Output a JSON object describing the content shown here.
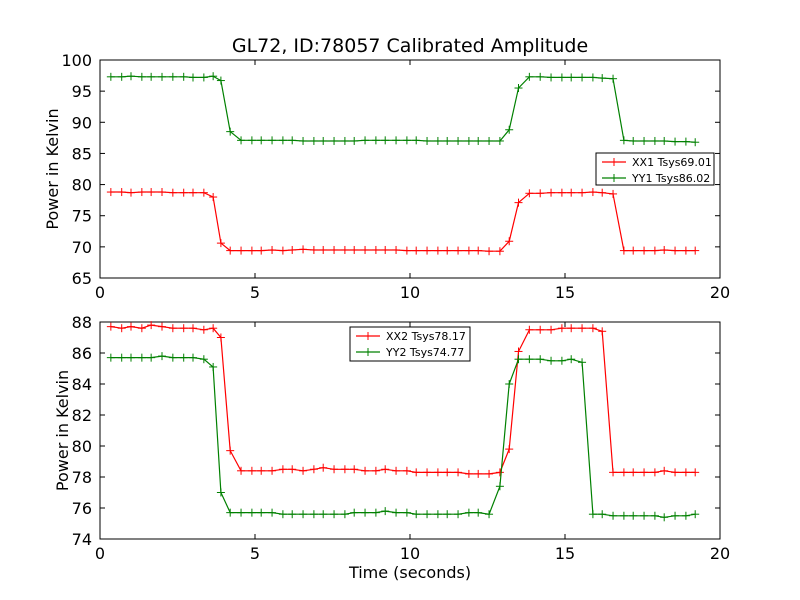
{
  "figure": {
    "title": "GL72, ID:78057 Calibrated Amplitude",
    "xlabel": "Time (seconds)"
  },
  "chart_data": [
    {
      "type": "line",
      "ylabel": "Power in Kelvin",
      "xlim": [
        0,
        20
      ],
      "ylim": [
        65,
        100
      ],
      "x_ticks": [
        0,
        5,
        10,
        15,
        20
      ],
      "y_ticks": [
        65,
        70,
        75,
        80,
        85,
        90,
        95,
        100
      ],
      "legend_position": "center-right",
      "grid": false,
      "x": [
        0.35,
        0.7,
        1.0,
        1.35,
        1.65,
        2.0,
        2.35,
        2.7,
        3.0,
        3.35,
        3.65,
        3.9,
        4.2,
        4.55,
        4.9,
        5.2,
        5.55,
        5.9,
        6.2,
        6.55,
        6.9,
        7.2,
        7.55,
        7.9,
        8.2,
        8.55,
        8.9,
        9.2,
        9.55,
        9.9,
        10.2,
        10.55,
        10.9,
        11.2,
        11.55,
        11.9,
        12.2,
        12.55,
        12.9,
        13.2,
        13.5,
        13.85,
        14.2,
        14.55,
        14.9,
        15.2,
        15.55,
        15.9,
        16.2,
        16.55,
        16.9,
        17.2,
        17.55,
        17.9,
        18.2,
        18.55,
        18.9,
        19.2
      ],
      "series": [
        {
          "name": "XX1 Tsys69.01",
          "color": "#ff0000",
          "values": [
            78.8,
            78.8,
            78.7,
            78.8,
            78.8,
            78.8,
            78.7,
            78.7,
            78.7,
            78.7,
            78.0,
            70.6,
            69.4,
            69.4,
            69.4,
            69.4,
            69.5,
            69.4,
            69.5,
            69.6,
            69.5,
            69.5,
            69.5,
            69.5,
            69.5,
            69.5,
            69.5,
            69.5,
            69.5,
            69.4,
            69.4,
            69.4,
            69.4,
            69.4,
            69.4,
            69.4,
            69.4,
            69.3,
            69.3,
            70.9,
            77.1,
            78.6,
            78.6,
            78.7,
            78.7,
            78.7,
            78.7,
            78.8,
            78.7,
            78.5,
            69.4,
            69.4,
            69.4,
            69.4,
            69.5,
            69.4,
            69.4,
            69.4
          ]
        },
        {
          "name": "YY1 Tsys86.02",
          "color": "#008000",
          "values": [
            97.3,
            97.3,
            97.4,
            97.3,
            97.3,
            97.3,
            97.3,
            97.3,
            97.2,
            97.2,
            97.4,
            96.7,
            88.5,
            87.1,
            87.1,
            87.1,
            87.1,
            87.1,
            87.1,
            87.0,
            87.0,
            87.0,
            87.0,
            87.0,
            87.0,
            87.1,
            87.1,
            87.1,
            87.1,
            87.1,
            87.1,
            87.0,
            87.0,
            87.0,
            87.0,
            87.0,
            87.0,
            87.0,
            87.0,
            88.8,
            95.5,
            97.3,
            97.3,
            97.2,
            97.2,
            97.2,
            97.2,
            97.2,
            97.1,
            97.0,
            87.1,
            87.0,
            87.0,
            87.0,
            87.0,
            86.9,
            86.9,
            86.8
          ]
        }
      ]
    },
    {
      "type": "line",
      "ylabel": "Power in Kelvin",
      "xlabel": "Time (seconds)",
      "xlim": [
        0,
        20
      ],
      "ylim": [
        74,
        88
      ],
      "x_ticks": [
        0,
        5,
        10,
        15,
        20
      ],
      "y_ticks": [
        74,
        76,
        78,
        80,
        82,
        84,
        86,
        88
      ],
      "legend_position": "top-center",
      "grid": false,
      "x": [
        0.35,
        0.7,
        1.0,
        1.35,
        1.65,
        2.0,
        2.35,
        2.7,
        3.0,
        3.35,
        3.65,
        3.9,
        4.2,
        4.55,
        4.9,
        5.2,
        5.55,
        5.9,
        6.2,
        6.55,
        6.9,
        7.2,
        7.55,
        7.9,
        8.2,
        8.55,
        8.9,
        9.2,
        9.55,
        9.9,
        10.2,
        10.55,
        10.9,
        11.2,
        11.55,
        11.9,
        12.2,
        12.55,
        12.9,
        13.2,
        13.5,
        13.85,
        14.2,
        14.55,
        14.9,
        15.2,
        15.55,
        15.9,
        16.2,
        16.55,
        16.9,
        17.2,
        17.55,
        17.9,
        18.2,
        18.55,
        18.9,
        19.2
      ],
      "series": [
        {
          "name": "XX2 Tsys78.17",
          "color": "#ff0000",
          "values": [
            87.7,
            87.6,
            87.7,
            87.6,
            87.8,
            87.7,
            87.6,
            87.6,
            87.6,
            87.5,
            87.6,
            87.0,
            79.7,
            78.4,
            78.4,
            78.4,
            78.4,
            78.5,
            78.5,
            78.4,
            78.5,
            78.6,
            78.5,
            78.5,
            78.5,
            78.4,
            78.4,
            78.5,
            78.4,
            78.4,
            78.3,
            78.3,
            78.3,
            78.3,
            78.3,
            78.2,
            78.2,
            78.2,
            78.3,
            79.8,
            86.1,
            87.5,
            87.5,
            87.5,
            87.6,
            87.6,
            87.6,
            87.6,
            87.4,
            78.3,
            78.3,
            78.3,
            78.3,
            78.3,
            78.4,
            78.3,
            78.3,
            78.3
          ],
          "values_note": null
        },
        {
          "name": "YY2 Tsys74.77",
          "color": "#008000",
          "values": [
            85.7,
            85.7,
            85.7,
            85.7,
            85.7,
            85.8,
            85.7,
            85.7,
            85.7,
            85.6,
            85.1,
            77.0,
            75.7,
            75.7,
            75.7,
            75.7,
            75.7,
            75.6,
            75.6,
            75.6,
            75.6,
            75.6,
            75.6,
            75.6,
            75.7,
            75.7,
            75.7,
            75.8,
            75.7,
            75.7,
            75.6,
            75.6,
            75.6,
            75.6,
            75.6,
            75.7,
            75.7,
            75.6,
            77.4,
            84.0,
            85.6,
            85.6,
            85.6,
            85.5,
            85.5,
            85.6,
            85.4,
            75.6,
            75.6,
            75.5,
            75.5,
            75.5,
            75.5,
            75.5,
            75.4,
            75.5,
            75.5,
            75.6
          ]
        }
      ]
    }
  ]
}
